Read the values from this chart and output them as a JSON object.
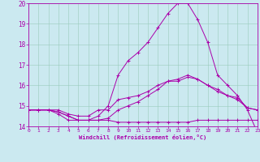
{
  "xlabel": "Windchill (Refroidissement éolien,°C)",
  "xlim": [
    0,
    23
  ],
  "ylim": [
    14,
    20
  ],
  "yticks": [
    14,
    15,
    16,
    17,
    18,
    19,
    20
  ],
  "xticks": [
    0,
    1,
    2,
    3,
    4,
    5,
    6,
    7,
    8,
    9,
    10,
    11,
    12,
    13,
    14,
    15,
    16,
    17,
    18,
    19,
    20,
    21,
    22,
    23
  ],
  "background_color": "#cbe9f0",
  "line_color": "#aa00aa",
  "grid_color": "#99ccbb",
  "series": [
    {
      "x": [
        0,
        1,
        2,
        3,
        4,
        5,
        6,
        7,
        8,
        9,
        10,
        11,
        12,
        13,
        14,
        15,
        16,
        17,
        18,
        19,
        20,
        21,
        22,
        23
      ],
      "y": [
        14.8,
        14.8,
        14.8,
        14.7,
        14.5,
        14.3,
        14.3,
        14.5,
        15.0,
        16.5,
        17.2,
        17.6,
        18.1,
        18.8,
        19.5,
        20.0,
        20.0,
        19.2,
        18.1,
        16.5,
        16.0,
        15.5,
        14.8,
        13.7
      ]
    },
    {
      "x": [
        0,
        1,
        2,
        3,
        4,
        5,
        6,
        7,
        8,
        9,
        10,
        11,
        12,
        13,
        14,
        15,
        16,
        17,
        18,
        19,
        20,
        21,
        22,
        23
      ],
      "y": [
        14.8,
        14.8,
        14.8,
        14.8,
        14.6,
        14.5,
        14.5,
        14.8,
        14.8,
        15.3,
        15.4,
        15.5,
        15.7,
        16.0,
        16.2,
        16.2,
        16.4,
        16.3,
        16.0,
        15.8,
        15.5,
        15.4,
        14.9,
        14.8
      ]
    },
    {
      "x": [
        0,
        1,
        2,
        3,
        4,
        5,
        6,
        7,
        8,
        9,
        10,
        11,
        12,
        13,
        14,
        15,
        16,
        17,
        18,
        19,
        20,
        21,
        22,
        23
      ],
      "y": [
        14.8,
        14.8,
        14.8,
        14.7,
        14.5,
        14.3,
        14.3,
        14.3,
        14.4,
        14.8,
        15.0,
        15.2,
        15.5,
        15.8,
        16.2,
        16.3,
        16.5,
        16.3,
        16.0,
        15.7,
        15.5,
        15.3,
        14.9,
        14.8
      ]
    },
    {
      "x": [
        0,
        1,
        2,
        3,
        4,
        5,
        6,
        7,
        8,
        9,
        10,
        11,
        12,
        13,
        14,
        15,
        16,
        17,
        18,
        19,
        20,
        21,
        22,
        23
      ],
      "y": [
        14.8,
        14.8,
        14.8,
        14.6,
        14.3,
        14.3,
        14.3,
        14.3,
        14.3,
        14.2,
        14.2,
        14.2,
        14.2,
        14.2,
        14.2,
        14.2,
        14.2,
        14.3,
        14.3,
        14.3,
        14.3,
        14.3,
        14.3,
        14.3
      ]
    }
  ]
}
